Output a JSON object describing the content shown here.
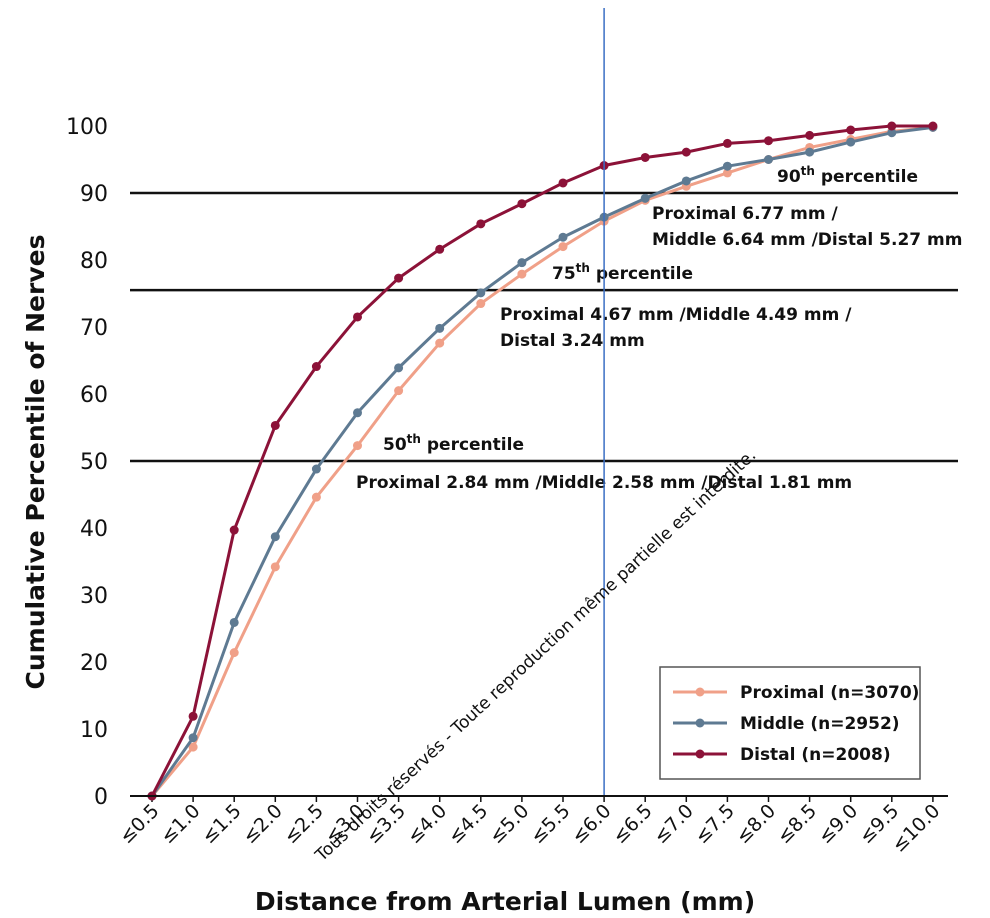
{
  "chart_data": {
    "type": "line",
    "xlabel": "Distance from Arterial Lumen (mm)",
    "ylabel": "Cumulative Percentile of Nerves",
    "ylim": [
      0,
      100
    ],
    "yticks": [
      "0",
      "10",
      "20",
      "30",
      "40",
      "50",
      "60",
      "70",
      "80",
      "90",
      "100"
    ],
    "categories": [
      "≤0.5",
      "≤1.0",
      "≤1.5",
      "≤2.0",
      "≤2.5",
      "≤3.0",
      "≤3.5",
      "≤4.0",
      "≤4.5",
      "≤5.0",
      "≤5.5",
      "≤6.0",
      "≤6.5",
      "≤7.0",
      "≤7.5",
      "≤8.0",
      "≤8.5",
      "≤9.0",
      "≤9.5",
      "≤10.0"
    ],
    "series": [
      {
        "name": "Proximal (n=3070)",
        "color": "#f0a088",
        "values": [
          0,
          7.3,
          21.4,
          34.2,
          44.6,
          52.3,
          60.5,
          67.6,
          73.5,
          77.9,
          82.0,
          85.8,
          88.9,
          91.0,
          93.0,
          95.0,
          96.8,
          98.0,
          99.2,
          99.8
        ]
      },
      {
        "name": "Middle (n=2952)",
        "color": "#5e7a92",
        "values": [
          0,
          8.7,
          25.9,
          38.7,
          48.8,
          57.2,
          63.9,
          69.8,
          75.1,
          79.6,
          83.4,
          86.4,
          89.2,
          91.8,
          94.0,
          95.0,
          96.1,
          97.6,
          99.0,
          99.8
        ]
      },
      {
        "name": "Distal (n=2008)",
        "color": "#8c1238",
        "values": [
          0,
          11.9,
          39.7,
          55.3,
          64.1,
          71.5,
          77.3,
          81.6,
          85.4,
          88.4,
          91.5,
          94.1,
          95.3,
          96.1,
          97.4,
          97.8,
          98.6,
          99.4,
          100,
          100
        ]
      }
    ],
    "reference_lines": [
      {
        "y": 90,
        "label_sup": "90",
        "label_main": "th percentile",
        "detail": [
          "Proximal 6.77 mm /",
          "Middle 6.64 mm /Distal 5.27 mm"
        ]
      },
      {
        "y": 75.5,
        "label_sup": "75",
        "label_main": "th percentile",
        "detail": [
          "Proximal 4.67 mm /Middle 4.49 mm /",
          "Distal 3.24 mm"
        ]
      },
      {
        "y": 50,
        "label_sup": "50",
        "label_main": "th percentile",
        "detail": [
          "Proximal 2.84 mm /Middle 2.58 mm /Distal 1.81 mm"
        ]
      }
    ],
    "vertical_marker_x": 6.0,
    "legend_position": "bottom-right",
    "grid": false
  },
  "watermark_text": "Tous droits réservés - Toute reproduction même partielle est interdite."
}
